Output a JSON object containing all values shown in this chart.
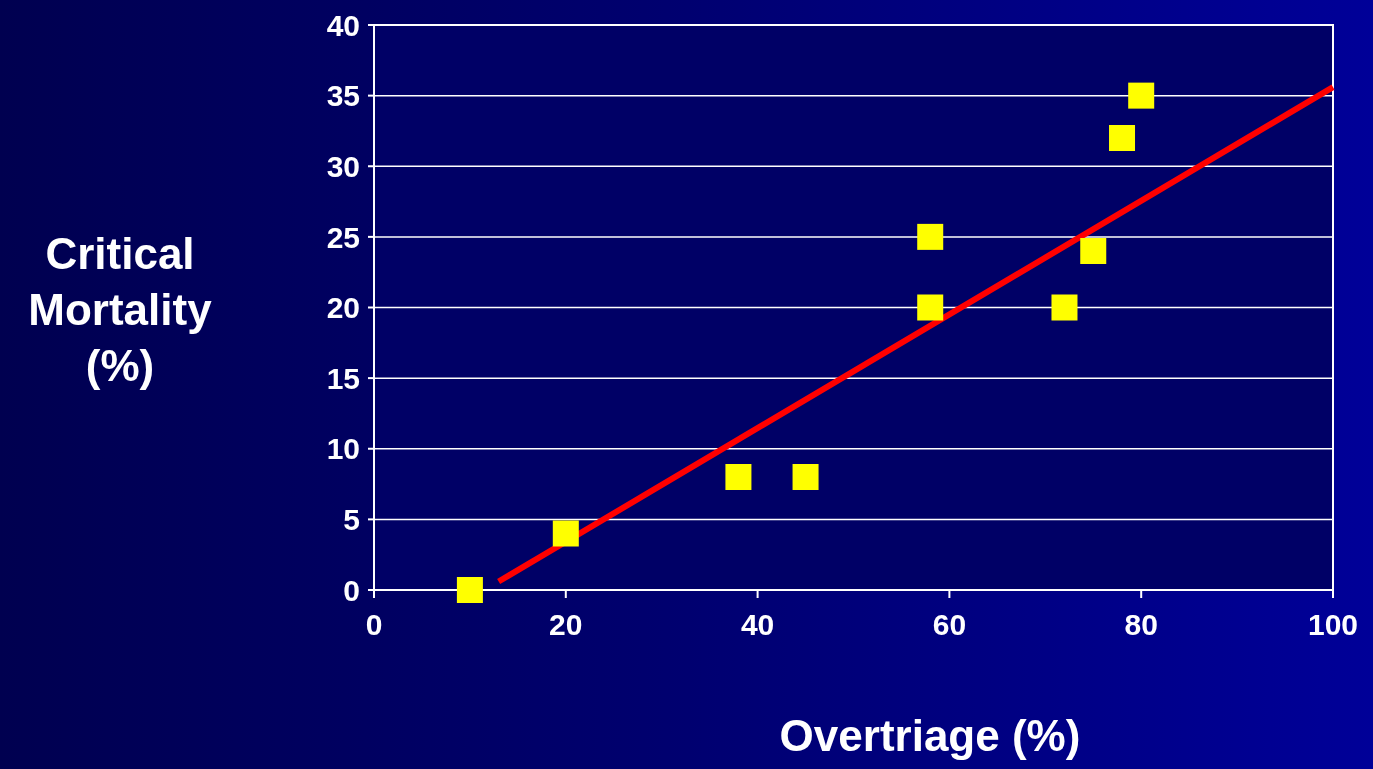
{
  "chart_data": {
    "type": "scatter",
    "xlabel": "Overtriage (%)",
    "ylabel": "Critical Mortality (%)",
    "xlim": [
      0,
      100
    ],
    "xticks": [
      0,
      20,
      40,
      60,
      80,
      100
    ],
    "ylim": [
      0,
      40
    ],
    "yticks": [
      0,
      5,
      10,
      15,
      20,
      25,
      30,
      35,
      40
    ],
    "grid": "y",
    "legend": false,
    "marker": "square",
    "series": [
      {
        "color": "#ffff00",
        "x": [
          10,
          20,
          38,
          45,
          58,
          58,
          72,
          75,
          78,
          80
        ],
        "values": [
          0,
          4,
          8,
          8,
          20,
          25,
          20,
          24,
          32,
          35
        ]
      },
      {
        "type": "line",
        "color": "#ff0000",
        "marker": "none",
        "line_style": "solid",
        "x": [
          13,
          100
        ],
        "values": [
          0.6,
          35.6
        ]
      }
    ]
  }
}
